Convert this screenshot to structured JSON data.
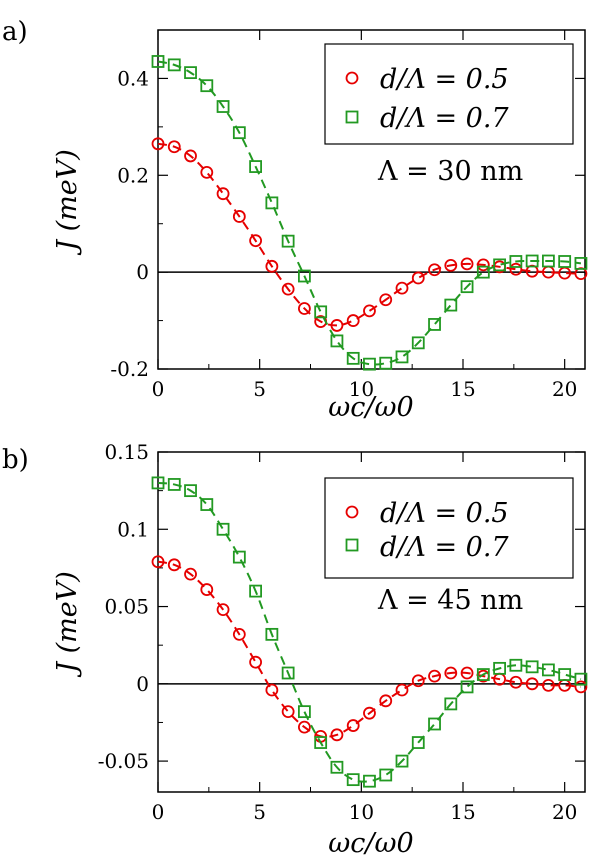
{
  "chart_data": [
    {
      "panel_label": "a)",
      "type": "line",
      "xlabel": "ωc/ω0",
      "ylabel": "J (meV)",
      "xlim": [
        0,
        21
      ],
      "ylim": [
        -0.2,
        0.5
      ],
      "xticks": [
        "0",
        "5",
        "10",
        "15",
        "20"
      ],
      "yticks": [
        "-0.2",
        "0",
        "0.2",
        "0.4"
      ],
      "annotation": "Λ = 30 nm",
      "zero_line": true,
      "legend": {
        "placement": "top-right",
        "entries": [
          "d/Λ = 0.5",
          "d/Λ = 0.7"
        ]
      },
      "series": [
        {
          "name": "d/Λ = 0.5",
          "marker": "circle",
          "color": "#e60000",
          "x": [
            0,
            0.8,
            1.6,
            2.4,
            3.2,
            4.0,
            4.8,
            5.6,
            6.4,
            7.2,
            8.0,
            8.8,
            9.6,
            10.4,
            11.2,
            12.0,
            12.8,
            13.6,
            14.4,
            15.2,
            16.0,
            16.8,
            17.6,
            18.4,
            19.2,
            20.0,
            20.8
          ],
          "values": [
            0.265,
            0.259,
            0.24,
            0.206,
            0.162,
            0.115,
            0.065,
            0.012,
            -0.035,
            -0.075,
            -0.102,
            -0.11,
            -0.1,
            -0.08,
            -0.057,
            -0.033,
            -0.012,
            0.005,
            0.014,
            0.017,
            0.015,
            0.011,
            0.006,
            0.002,
            0.0,
            -0.002,
            -0.003
          ]
        },
        {
          "name": "d/Λ = 0.7",
          "marker": "square",
          "color": "#229922",
          "x": [
            0,
            0.8,
            1.6,
            2.4,
            3.2,
            4.0,
            4.8,
            5.6,
            6.4,
            7.2,
            8.0,
            8.8,
            9.6,
            10.4,
            11.2,
            12.0,
            12.8,
            13.6,
            14.4,
            15.2,
            16.0,
            16.8,
            17.6,
            18.4,
            19.2,
            20.0,
            20.8
          ],
          "values": [
            0.435,
            0.428,
            0.412,
            0.385,
            0.342,
            0.288,
            0.218,
            0.143,
            0.064,
            -0.008,
            -0.082,
            -0.142,
            -0.178,
            -0.19,
            -0.188,
            -0.175,
            -0.146,
            -0.108,
            -0.068,
            -0.03,
            0.0,
            0.015,
            0.022,
            0.023,
            0.023,
            0.022,
            0.018
          ]
        }
      ]
    },
    {
      "panel_label": "b)",
      "type": "line",
      "xlabel": "ωc/ω0",
      "ylabel": "J (meV)",
      "xlim": [
        0,
        21
      ],
      "ylim": [
        -0.07,
        0.15
      ],
      "xticks": [
        "0",
        "5",
        "10",
        "15",
        "20"
      ],
      "yticks": [
        "-0.05",
        "0",
        "0.05",
        "0.1",
        "0.15"
      ],
      "annotation": "Λ = 45 nm",
      "zero_line": true,
      "legend": {
        "placement": "top-right",
        "entries": [
          "d/Λ = 0.5",
          "d/Λ = 0.7"
        ]
      },
      "series": [
        {
          "name": "d/Λ = 0.5",
          "marker": "circle",
          "color": "#e60000",
          "x": [
            0,
            0.8,
            1.6,
            2.4,
            3.2,
            4.0,
            4.8,
            5.6,
            6.4,
            7.2,
            8.0,
            8.8,
            9.6,
            10.4,
            11.2,
            12.0,
            12.8,
            13.6,
            14.4,
            15.2,
            16.0,
            16.8,
            17.6,
            18.4,
            19.2,
            20.0,
            20.8
          ],
          "values": [
            0.079,
            0.077,
            0.071,
            0.061,
            0.048,
            0.032,
            0.014,
            -0.004,
            -0.018,
            -0.028,
            -0.034,
            -0.033,
            -0.027,
            -0.019,
            -0.011,
            -0.004,
            0.002,
            0.005,
            0.007,
            0.007,
            0.005,
            0.003,
            0.001,
            0.0,
            -0.001,
            -0.001,
            -0.002
          ]
        },
        {
          "name": "d/Λ = 0.7",
          "marker": "square",
          "color": "#229922",
          "x": [
            0,
            0.8,
            1.6,
            2.4,
            3.2,
            4.0,
            4.8,
            5.6,
            6.4,
            7.2,
            8.0,
            8.8,
            9.6,
            10.4,
            11.2,
            12.0,
            12.8,
            13.6,
            14.4,
            15.2,
            16.0,
            16.8,
            17.6,
            18.4,
            19.2,
            20.0,
            20.8
          ],
          "values": [
            0.13,
            0.129,
            0.125,
            0.116,
            0.1,
            0.082,
            0.06,
            0.032,
            0.007,
            -0.018,
            -0.038,
            -0.054,
            -0.062,
            -0.063,
            -0.059,
            -0.05,
            -0.038,
            -0.026,
            -0.013,
            -0.002,
            0.006,
            0.01,
            0.012,
            0.011,
            0.009,
            0.006,
            0.003
          ]
        }
      ]
    }
  ]
}
